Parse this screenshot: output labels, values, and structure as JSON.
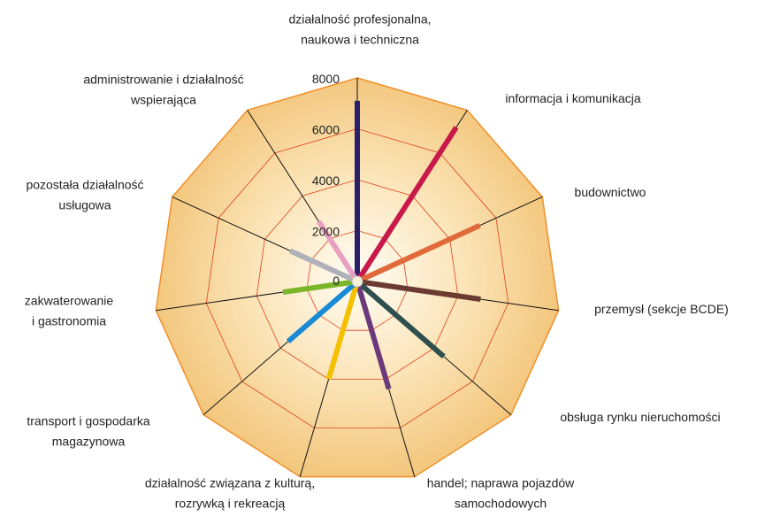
{
  "chart_data": {
    "type": "radar",
    "categories": [
      "działalność profesjonalna,\nnaukowa i techniczna",
      "informacja i komunikacja",
      "budownictwo",
      "przemysł (sekcje BCDE)",
      "obsługa rynku nieruchomości",
      "handel; naprawa pojazdów\nsamochodowych",
      "działalność związana z kulturą,\nrozrywką i rekreacją",
      "transport i gospodarka\nmagazynowa",
      "zakwaterowanie\ni gastronomia",
      "pozostała działalność\nusługowa",
      "administrowanie i działalność\nwspierająca"
    ],
    "values": [
      7100,
      7200,
      5300,
      4900,
      4500,
      4400,
      4000,
      3600,
      2950,
      2900,
      2800
    ],
    "colors": [
      "#2a1f6b",
      "#c8194a",
      "#e06a3a",
      "#6b3a30",
      "#2f4f4f",
      "#6b3a7a",
      "#f5c000",
      "#1a8ad4",
      "#7ab52a",
      "#b0b0b8",
      "#e8a0c0"
    ],
    "ylim": [
      0,
      8000
    ],
    "yticks": [
      0,
      2000,
      4000,
      6000,
      8000
    ],
    "grid": true
  }
}
